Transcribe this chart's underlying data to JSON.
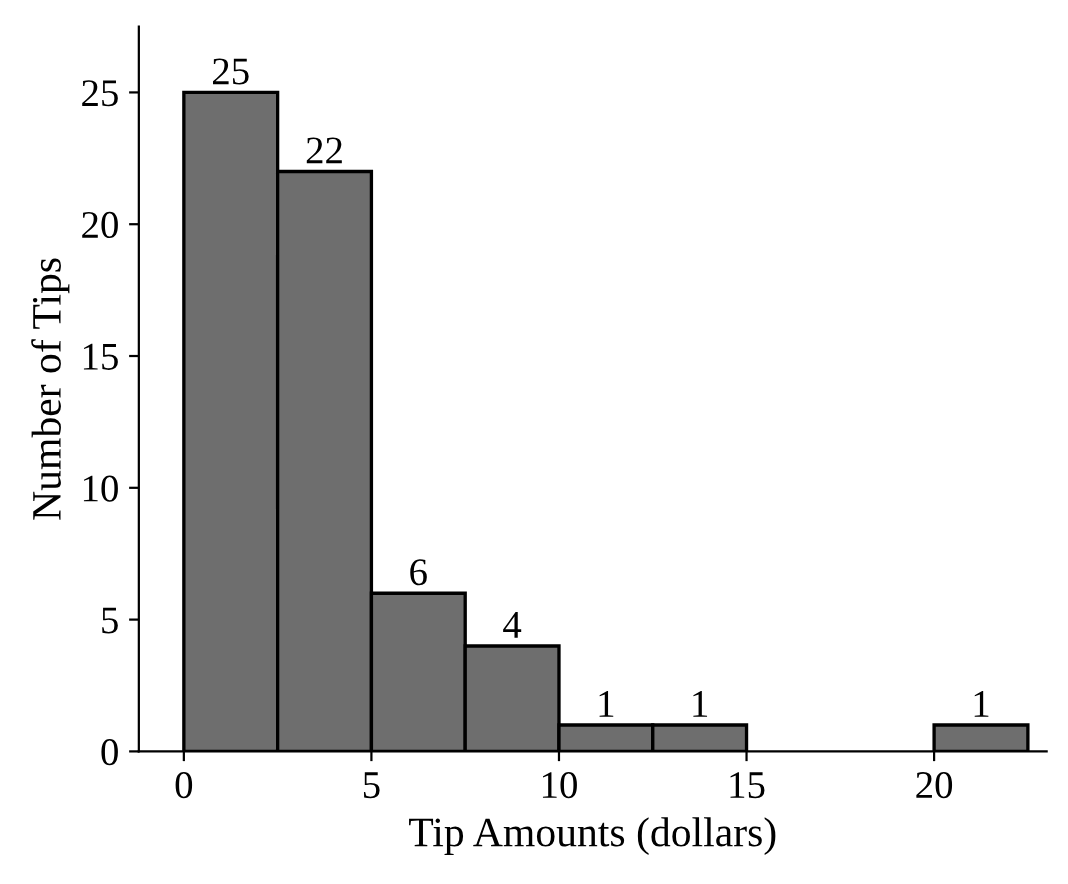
{
  "chart_data": {
    "type": "histogram",
    "xlabel": "Tip Amounts (dollars)",
    "ylabel": "Number of Tips",
    "bins": [
      0,
      2.5,
      5,
      7.5,
      10,
      12.5,
      15,
      17.5,
      20,
      22.5
    ],
    "values": [
      25,
      22,
      6,
      4,
      1,
      1,
      0,
      0,
      1
    ],
    "value_labels": [
      "25",
      "22",
      "6",
      "4",
      "1",
      "1",
      null,
      null,
      "1"
    ],
    "color": "#6e6e6e",
    "xlim": [
      -1.2,
      23
    ],
    "ylim": [
      0,
      27.5
    ],
    "xticks": [
      0,
      5,
      10,
      15,
      20
    ],
    "yticks": [
      0,
      5,
      10,
      15,
      20,
      25
    ],
    "grid": false
  }
}
